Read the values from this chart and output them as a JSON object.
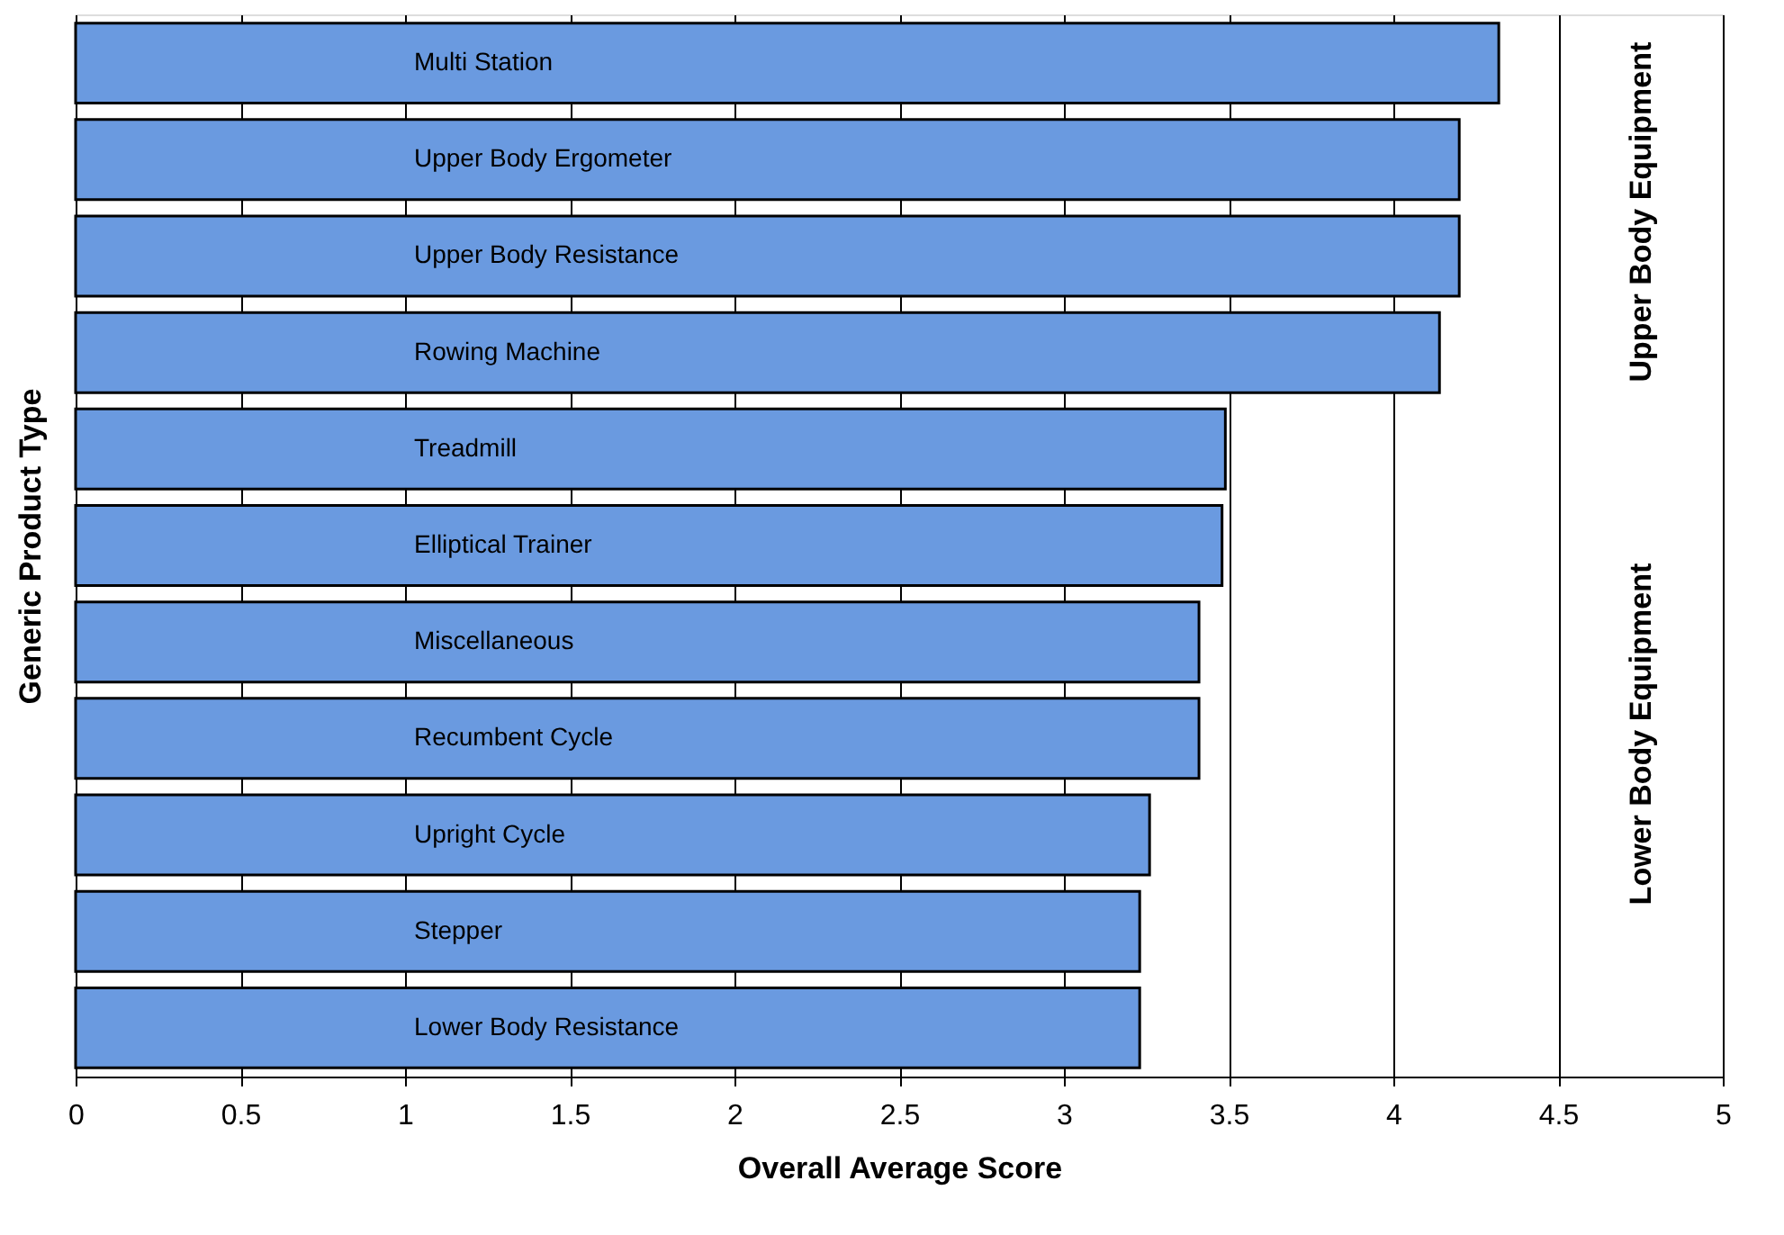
{
  "chart_data": {
    "type": "bar",
    "orientation": "horizontal",
    "xlabel": "Overall Average Score",
    "ylabel": "Generic Product Type",
    "categories": [
      "Multi Station",
      "Upper Body Ergometer",
      "Upper Body Resistance",
      "Rowing Machine",
      "Treadmill",
      "Elliptical Trainer",
      "Miscellaneous",
      "Recumbent Cycle",
      "Upright Cycle",
      "Stepper",
      "Lower Body Resistance"
    ],
    "values": [
      4.32,
      4.2,
      4.2,
      4.14,
      3.49,
      3.48,
      3.41,
      3.41,
      3.26,
      3.23,
      3.23
    ],
    "color": "#6a9ae0",
    "xlim": [
      0,
      5
    ],
    "xticks": [
      0,
      0.5,
      1,
      1.5,
      2,
      2.5,
      3,
      3.5,
      4,
      4.5,
      5
    ],
    "grid": "x",
    "tick_labels": "x",
    "legend": false,
    "annotations": [
      "Upper Body Equipment",
      "Lower Body Equipment"
    ]
  }
}
